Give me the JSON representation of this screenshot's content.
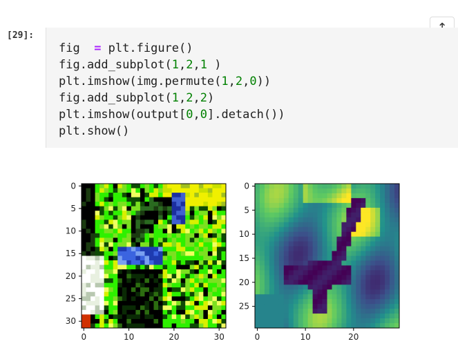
{
  "notebook": {
    "cell_prompt": "[29]:",
    "scroll_up_icon": "arrow-up-icon",
    "code_lines": [
      [
        {
          "t": "fig  "
        },
        {
          "t": "=",
          "c": "op"
        },
        {
          "t": " plt.figure()"
        }
      ],
      [
        {
          "t": "fig.add_subplot("
        },
        {
          "t": "1",
          "c": "num"
        },
        {
          "t": ","
        },
        {
          "t": "2",
          "c": "num"
        },
        {
          "t": ","
        },
        {
          "t": "1",
          "c": "num"
        },
        {
          "t": " )"
        }
      ],
      [
        {
          "t": "plt.imshow(img.permute("
        },
        {
          "t": "1",
          "c": "num"
        },
        {
          "t": ","
        },
        {
          "t": "2",
          "c": "num"
        },
        {
          "t": ","
        },
        {
          "t": "0",
          "c": "num"
        },
        {
          "t": "))"
        }
      ],
      [
        {
          "t": "fig.add_subplot("
        },
        {
          "t": "1",
          "c": "num"
        },
        {
          "t": ","
        },
        {
          "t": "2",
          "c": "num"
        },
        {
          "t": ","
        },
        {
          "t": "2",
          "c": "num"
        },
        {
          "t": ")"
        }
      ],
      [
        {
          "t": "plt.imshow(output["
        },
        {
          "t": "0",
          "c": "num"
        },
        {
          "t": ","
        },
        {
          "t": "0",
          "c": "num"
        },
        {
          "t": "].detach())"
        }
      ],
      [
        {
          "t": "plt.show()"
        }
      ]
    ]
  },
  "chart_data": [
    {
      "type": "heatmap",
      "image": "color-photo",
      "grid_size": 32,
      "y_ticks": [
        0,
        5,
        10,
        15,
        20,
        25,
        30
      ],
      "x_ticks": [
        0,
        10,
        20,
        30
      ]
    },
    {
      "type": "heatmap",
      "colormap": "viridis",
      "grid_size": 30,
      "y_ticks": [
        0,
        5,
        10,
        15,
        20,
        25
      ],
      "x_ticks": [
        0,
        10,
        20
      ]
    }
  ]
}
